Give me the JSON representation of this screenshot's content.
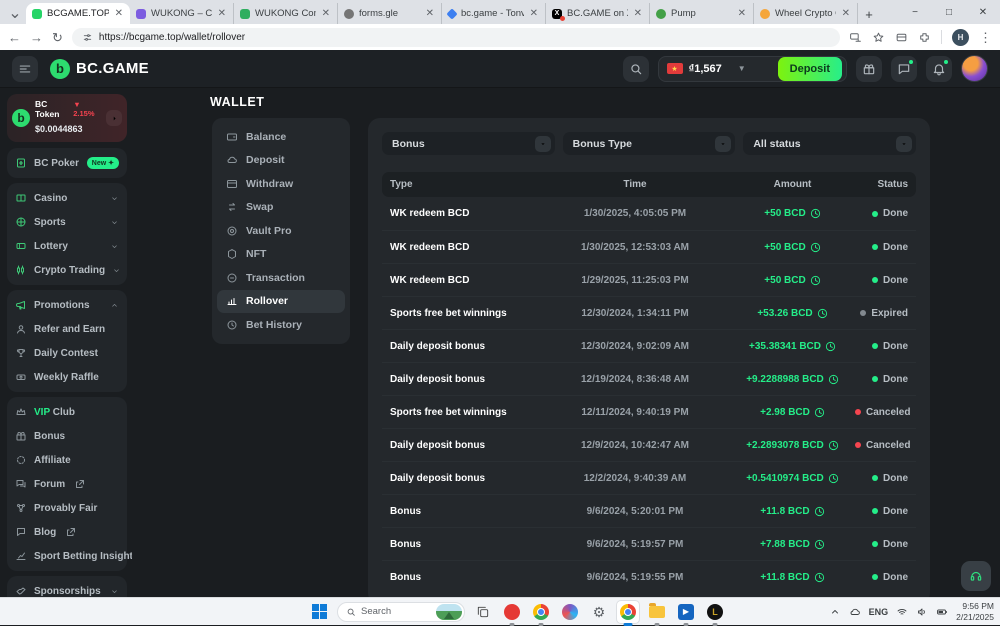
{
  "browser": {
    "tabs": [
      {
        "label": "BCGAME.TOP: Crypt...",
        "color": "#26d467",
        "shape": "square",
        "active": true
      },
      {
        "label": "WUKONG – Commu...",
        "color": "#7c5ce0",
        "shape": "square"
      },
      {
        "label": "WUKONG Communi...",
        "color": "#2fae5f",
        "shape": "square"
      },
      {
        "label": "forms.gle",
        "color": "#757575",
        "shape": "circle"
      },
      {
        "label": "bc.game - Tonviewer",
        "color": "#3d7ff0",
        "shape": "diamond"
      },
      {
        "label": "BC.GAME on X: \"",
        "color": "#000000",
        "shape": "square",
        "letter": "X",
        "notification": true
      },
      {
        "label": "Pump",
        "color": "#43a047",
        "shape": "circle"
      },
      {
        "label": "Wheel Crypto Casino",
        "color": "#f5a63b",
        "shape": "circle"
      }
    ],
    "url": "https://bcgame.top/wallet/rollover",
    "avatar_letter": "H"
  },
  "header": {
    "logo": "BC.GAME",
    "balance": "₫1,567",
    "deposit_label": "Deposit"
  },
  "sidebar": {
    "token": {
      "name": "BC Token",
      "change": "▼ 2.15%",
      "price": "$0.0044863"
    },
    "groups": [
      {
        "items": [
          {
            "label": "BC Poker",
            "icon": "poker",
            "green": true,
            "badge": "New ✦"
          }
        ]
      },
      {
        "items": [
          {
            "label": "Casino",
            "icon": "casino",
            "green": true,
            "right": "chev-d"
          },
          {
            "label": "Sports",
            "icon": "sports",
            "green": true,
            "right": "chev-d"
          },
          {
            "label": "Lottery",
            "icon": "lottery",
            "green": true,
            "right": "chev-d"
          },
          {
            "label": "Crypto Trading",
            "icon": "crypto",
            "green": true,
            "right": "chev-d"
          }
        ]
      },
      {
        "items": [
          {
            "label": "Promotions",
            "icon": "promotions",
            "green": true,
            "right": "chev-u"
          },
          {
            "label": "Refer and Earn",
            "icon": "refer"
          },
          {
            "label": "Daily Contest",
            "icon": "contest"
          },
          {
            "label": "Weekly Raffle",
            "icon": "raffle"
          }
        ]
      },
      {
        "items": [
          {
            "label": "Club",
            "vip_prefix": "VIP",
            "icon": "crown"
          },
          {
            "label": "Bonus",
            "icon": "gift"
          },
          {
            "label": "Affiliate",
            "icon": "affiliate"
          },
          {
            "label": "Forum",
            "icon": "forum",
            "external": true
          },
          {
            "label": "Provably Fair",
            "icon": "fair"
          },
          {
            "label": "Blog",
            "icon": "blog",
            "external": true
          },
          {
            "label": "Sport Betting Insights",
            "icon": "insights",
            "external": true
          }
        ]
      },
      {
        "items": [
          {
            "label": "Sponsorships",
            "icon": "sponsorships",
            "right": "chev-d"
          }
        ]
      },
      {
        "items": [
          {
            "label": "Live Support",
            "icon": "headset"
          }
        ]
      }
    ]
  },
  "wallet": {
    "title": "WALLET",
    "menu": [
      {
        "label": "Balance",
        "icon": "balance"
      },
      {
        "label": "Deposit",
        "icon": "deposit"
      },
      {
        "label": "Withdraw",
        "icon": "withdraw"
      },
      {
        "label": "Swap",
        "icon": "swap"
      },
      {
        "label": "Vault Pro",
        "icon": "vault"
      },
      {
        "label": "NFT",
        "icon": "nft"
      },
      {
        "label": "Transaction",
        "icon": "transaction"
      },
      {
        "label": "Rollover",
        "icon": "rollover",
        "active": true
      },
      {
        "label": "Bet History",
        "icon": "bet-history"
      }
    ]
  },
  "filters": [
    {
      "label": "Bonus"
    },
    {
      "label": "Bonus Type"
    },
    {
      "label": "All status"
    }
  ],
  "table": {
    "headers": [
      "Type",
      "Time",
      "Amount",
      "Status"
    ],
    "rows": [
      {
        "type": "WK redeem BCD",
        "time": "1/30/2025, 4:05:05 PM",
        "amount": "+50 BCD",
        "status": "Done"
      },
      {
        "type": "WK redeem BCD",
        "time": "1/30/2025, 12:53:03 AM",
        "amount": "+50 BCD",
        "status": "Done"
      },
      {
        "type": "WK redeem BCD",
        "time": "1/29/2025, 11:25:03 PM",
        "amount": "+50 BCD",
        "status": "Done"
      },
      {
        "type": "Sports free bet winnings",
        "time": "12/30/2024, 1:34:11 PM",
        "amount": "+53.26 BCD",
        "status": "Expired"
      },
      {
        "type": "Daily deposit bonus",
        "time": "12/30/2024, 9:02:09 AM",
        "amount": "+35.38341 BCD",
        "status": "Done"
      },
      {
        "type": "Daily deposit bonus",
        "time": "12/19/2024, 8:36:48 AM",
        "amount": "+9.2288988 BCD",
        "status": "Done"
      },
      {
        "type": "Sports free bet winnings",
        "time": "12/11/2024, 9:40:19 PM",
        "amount": "+2.98 BCD",
        "status": "Canceled"
      },
      {
        "type": "Daily deposit bonus",
        "time": "12/9/2024, 10:42:47 AM",
        "amount": "+2.2893078 BCD",
        "status": "Canceled"
      },
      {
        "type": "Daily deposit bonus",
        "time": "12/2/2024, 9:40:39 AM",
        "amount": "+0.5410974 BCD",
        "status": "Done"
      },
      {
        "type": "Bonus",
        "time": "9/6/2024, 5:20:01 PM",
        "amount": "+11.8 BCD",
        "status": "Done"
      },
      {
        "type": "Bonus",
        "time": "9/6/2024, 5:19:57 PM",
        "amount": "+7.88 BCD",
        "status": "Done"
      },
      {
        "type": "Bonus",
        "time": "9/6/2024, 5:19:55 PM",
        "amount": "+11.8 BCD",
        "status": "Done"
      }
    ]
  },
  "status_colors": {
    "Done": "#24ee89",
    "Expired": "#82898f",
    "Canceled": "#f5454f"
  },
  "accent_green": "#24ee89",
  "taskbar": {
    "search_placeholder": "Search",
    "apps": [
      {
        "name": "task-view"
      },
      {
        "name": "browser-red",
        "running": true
      },
      {
        "name": "chrome",
        "running": true
      },
      {
        "name": "paint-3d"
      },
      {
        "name": "settings"
      },
      {
        "name": "chrome-active",
        "running": true,
        "active": true
      },
      {
        "name": "file-explorer",
        "running": true
      },
      {
        "name": "movies-tv",
        "running": true
      },
      {
        "name": "league-of-legends",
        "running": true
      }
    ],
    "tray": {
      "lang": "ENG",
      "time": "9:56 PM",
      "date": "2/21/2025"
    }
  }
}
